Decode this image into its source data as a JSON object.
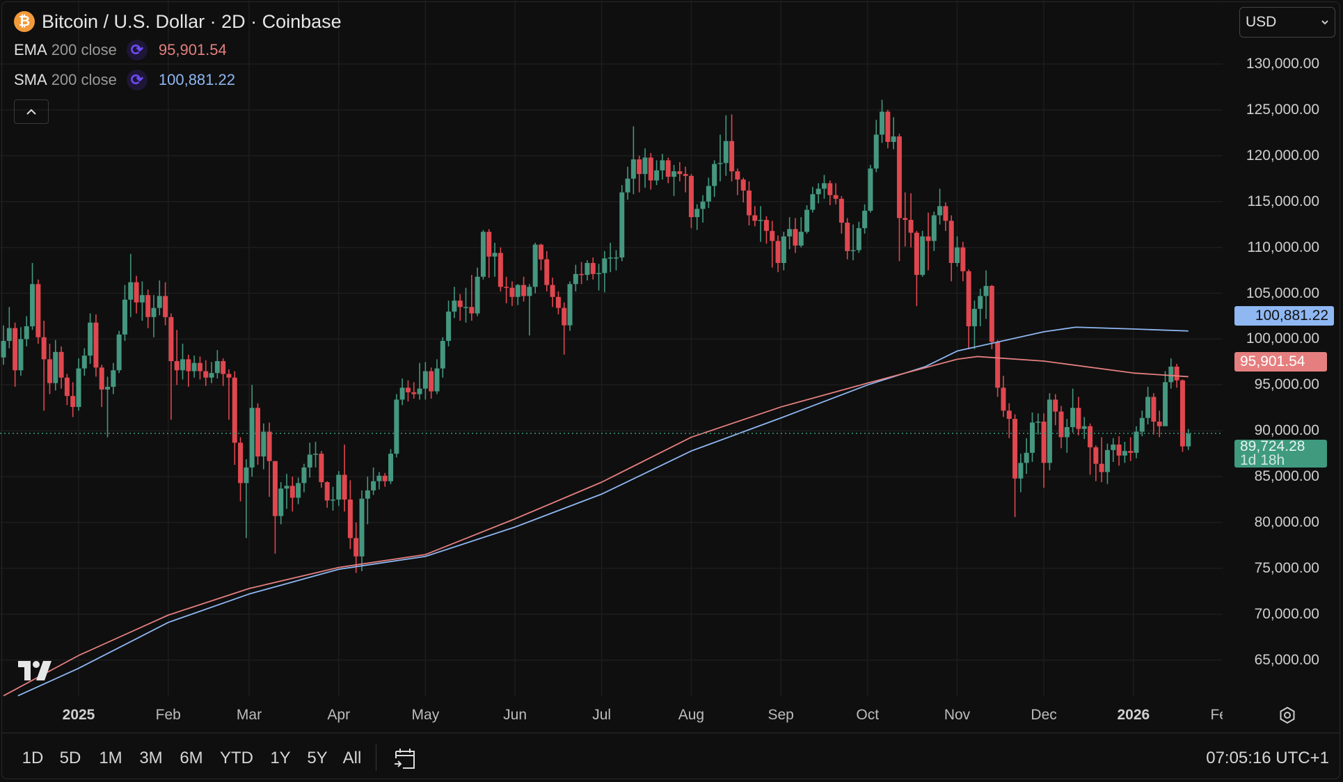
{
  "header": {
    "title": "Bitcoin / U.S. Dollar · 2D · Coinbase",
    "symbol_icon": "bitcoin-icon",
    "indicators": [
      {
        "name": "EMA",
        "params": "200 close",
        "value": "95,901.54",
        "color": "#e57f7f",
        "icon": "sync-icon"
      },
      {
        "name": "SMA",
        "params": "200 close",
        "value": "100,881.22",
        "color": "#8fb8f3",
        "icon": "sync-icon"
      }
    ],
    "collapse_icon": "chevron-up-icon"
  },
  "currency": {
    "selected": "USD"
  },
  "price_labels": {
    "sma": "100,881.22",
    "ema": "95,901.54",
    "last": "89,724.28",
    "countdown": "1d 18h",
    "last_color": "#3f9a7e"
  },
  "toolbar": {
    "ranges": [
      "1D",
      "5D",
      "1M",
      "3M",
      "6M",
      "YTD",
      "1Y",
      "5Y",
      "All"
    ],
    "date_range_icon": "calendar-goto-icon",
    "clock": "07:05:16 UTC+1",
    "settings_icon": "gear-icon"
  },
  "chart_data": {
    "type": "candlestick",
    "interval": "2D",
    "first_candle_date": "2024-12-06",
    "first_open": 98000,
    "colors": {
      "up": "#45977f",
      "down": "#e0474f",
      "ema": "#e57f7f",
      "sma": "#8fb8f3"
    },
    "grid": true,
    "y_ticks": [
      65000,
      70000,
      75000,
      80000,
      85000,
      90000,
      95000,
      100000,
      105000,
      110000,
      115000,
      120000,
      125000,
      130000
    ],
    "y_tick_labels": [
      "65,000.00",
      "70,000.00",
      "75,000.00",
      "80,000.00",
      "85,000.00",
      "90,000.00",
      "95,000.00",
      "100,000.00",
      "105,000.00",
      "110,000.00",
      "115,000.00",
      "120,000.00",
      "125,000.00",
      "130,000.00"
    ],
    "x_ticks": [
      {
        "date": "2025-01-01",
        "label": "2025",
        "bold": true
      },
      {
        "date": "2025-02-01",
        "label": "Feb"
      },
      {
        "date": "2025-03-01",
        "label": "Mar"
      },
      {
        "date": "2025-04-01",
        "label": "Apr"
      },
      {
        "date": "2025-05-01",
        "label": "May"
      },
      {
        "date": "2025-06-01",
        "label": "Jun"
      },
      {
        "date": "2025-07-01",
        "label": "Jul"
      },
      {
        "date": "2025-08-01",
        "label": "Aug"
      },
      {
        "date": "2025-09-01",
        "label": "Sep"
      },
      {
        "date": "2025-10-01",
        "label": "Oct"
      },
      {
        "date": "2025-11-01",
        "label": "Nov"
      },
      {
        "date": "2025-12-01",
        "label": "Dec"
      },
      {
        "date": "2026-01-01",
        "label": "2026",
        "bold": true
      },
      {
        "date": "2026-02-01",
        "label": "Feb"
      }
    ],
    "last_price": 89724.28,
    "candles_hlc": [
      [
        101500,
        97200,
        99800
      ],
      [
        103500,
        99000,
        101200
      ],
      [
        101800,
        94800,
        96600
      ],
      [
        101300,
        96000,
        100000
      ],
      [
        102500,
        99200,
        101400
      ],
      [
        108300,
        101000,
        106000
      ],
      [
        106500,
        99500,
        100200
      ],
      [
        102000,
        92200,
        97800
      ],
      [
        99500,
        94000,
        95200
      ],
      [
        99900,
        94400,
        98600
      ],
      [
        99200,
        94600,
        95800
      ],
      [
        96200,
        92800,
        93800
      ],
      [
        95300,
        91500,
        92600
      ],
      [
        97900,
        92200,
        96800
      ],
      [
        99000,
        96000,
        98200
      ],
      [
        102800,
        97300,
        101800
      ],
      [
        102700,
        95900,
        96900
      ],
      [
        97200,
        92600,
        94500
      ],
      [
        95900,
        89300,
        94800
      ],
      [
        97400,
        94000,
        96600
      ],
      [
        100900,
        96300,
        100500
      ],
      [
        105900,
        99800,
        104300
      ],
      [
        109300,
        102400,
        106200
      ],
      [
        106900,
        102800,
        104000
      ],
      [
        106300,
        102000,
        104800
      ],
      [
        105400,
        101200,
        102400
      ],
      [
        104800,
        100200,
        103400
      ],
      [
        106400,
        102600,
        104700
      ],
      [
        106200,
        101500,
        102400
      ],
      [
        102800,
        91200,
        97600
      ],
      [
        101000,
        95000,
        96600
      ],
      [
        99500,
        95600,
        97800
      ],
      [
        98300,
        94800,
        96500
      ],
      [
        98200,
        95800,
        97400
      ],
      [
        98100,
        95600,
        96500
      ],
      [
        97700,
        94900,
        95800
      ],
      [
        97500,
        95200,
        96300
      ],
      [
        98800,
        95700,
        97600
      ],
      [
        97900,
        94900,
        96200
      ],
      [
        96700,
        91200,
        95800
      ],
      [
        96500,
        86300,
        88700
      ],
      [
        89300,
        82300,
        84300
      ],
      [
        86900,
        78300,
        86000
      ],
      [
        95000,
        85000,
        92500
      ],
      [
        93000,
        86300,
        87200
      ],
      [
        90800,
        85800,
        89900
      ],
      [
        90900,
        82800,
        86700
      ],
      [
        86400,
        76600,
        80700
      ],
      [
        84400,
        79800,
        83700
      ],
      [
        85300,
        81500,
        84000
      ],
      [
        85000,
        81200,
        82700
      ],
      [
        84900,
        82000,
        84300
      ],
      [
        86400,
        83300,
        86000
      ],
      [
        88700,
        84900,
        87400
      ],
      [
        88800,
        86000,
        87500
      ],
      [
        87800,
        83800,
        84400
      ],
      [
        84500,
        81600,
        82400
      ],
      [
        83900,
        81300,
        82500
      ],
      [
        85600,
        81800,
        85200
      ],
      [
        88500,
        81200,
        82500
      ],
      [
        84600,
        77100,
        78300
      ],
      [
        80000,
        74500,
        76300
      ],
      [
        83500,
        74700,
        82600
      ],
      [
        85000,
        79800,
        83500
      ],
      [
        86000,
        83000,
        84500
      ],
      [
        85500,
        83600,
        85100
      ],
      [
        85400,
        83900,
        84500
      ],
      [
        88000,
        84200,
        87500
      ],
      [
        94000,
        87100,
        93400
      ],
      [
        95700,
        92800,
        94700
      ],
      [
        95500,
        93200,
        94200
      ],
      [
        95300,
        93500,
        94000
      ],
      [
        97400,
        93400,
        94600
      ],
      [
        97500,
        93400,
        96500
      ],
      [
        96900,
        93500,
        94300
      ],
      [
        97800,
        94000,
        96800
      ],
      [
        100200,
        95800,
        99800
      ],
      [
        104200,
        99200,
        103000
      ],
      [
        105700,
        102300,
        104200
      ],
      [
        104900,
        102000,
        103500
      ],
      [
        105600,
        101800,
        103500
      ],
      [
        107000,
        102000,
        102800
      ],
      [
        107800,
        102500,
        106800
      ],
      [
        111900,
        106500,
        111700
      ],
      [
        112000,
        106700,
        109000
      ],
      [
        110500,
        106800,
        109400
      ],
      [
        110000,
        105200,
        105700
      ],
      [
        106800,
        103900,
        105600
      ],
      [
        106300,
        103600,
        104600
      ],
      [
        106000,
        103700,
        105900
      ],
      [
        106800,
        104100,
        104700
      ],
      [
        106000,
        100400,
        105700
      ],
      [
        110500,
        105000,
        110300
      ],
      [
        110400,
        107500,
        108700
      ],
      [
        109600,
        105200,
        105900
      ],
      [
        106700,
        103500,
        104600
      ],
      [
        105200,
        102700,
        103400
      ],
      [
        104000,
        98300,
        101500
      ],
      [
        106300,
        100900,
        106000
      ],
      [
        108100,
        105200,
        107100
      ],
      [
        108400,
        106000,
        107000
      ],
      [
        108600,
        106400,
        108300
      ],
      [
        108900,
        106500,
        107100
      ],
      [
        108200,
        105300,
        107200
      ],
      [
        109600,
        105100,
        108800
      ],
      [
        110500,
        107300,
        108900
      ],
      [
        109700,
        107500,
        108900
      ],
      [
        116800,
        108500,
        116000
      ],
      [
        118800,
        115200,
        117500
      ],
      [
        123200,
        115800,
        119600
      ],
      [
        120000,
        116000,
        118000
      ],
      [
        120800,
        116500,
        119800
      ],
      [
        120300,
        116300,
        117300
      ],
      [
        119500,
        116800,
        118400
      ],
      [
        120200,
        117400,
        119500
      ],
      [
        119800,
        117000,
        117700
      ],
      [
        119000,
        115600,
        118300
      ],
      [
        119300,
        117200,
        118000
      ],
      [
        118800,
        116000,
        117800
      ],
      [
        118000,
        112100,
        113300
      ],
      [
        114700,
        111900,
        114200
      ],
      [
        115700,
        112700,
        115000
      ],
      [
        117600,
        114300,
        116700
      ],
      [
        119500,
        115500,
        119100
      ],
      [
        122300,
        117200,
        119200
      ],
      [
        124400,
        117800,
        121600
      ],
      [
        124500,
        117200,
        118300
      ],
      [
        118600,
        115700,
        117400
      ],
      [
        117600,
        114900,
        116200
      ],
      [
        117200,
        112400,
        113500
      ],
      [
        114500,
        112300,
        112900
      ],
      [
        114500,
        110600,
        113000
      ],
      [
        113400,
        110400,
        111800
      ],
      [
        112900,
        107800,
        110700
      ],
      [
        111300,
        107300,
        108300
      ],
      [
        111700,
        107500,
        111200
      ],
      [
        113300,
        109800,
        112000
      ],
      [
        113200,
        109400,
        110200
      ],
      [
        113300,
        110000,
        111700
      ],
      [
        114600,
        111500,
        114100
      ],
      [
        116600,
        113800,
        115800
      ],
      [
        117000,
        114800,
        116400
      ],
      [
        117900,
        115300,
        117000
      ],
      [
        117300,
        114600,
        115700
      ],
      [
        117000,
        114700,
        115300
      ],
      [
        115600,
        111500,
        112700
      ],
      [
        113200,
        108700,
        109600
      ],
      [
        112500,
        108600,
        109700
      ],
      [
        112800,
        109400,
        112100
      ],
      [
        114700,
        111500,
        114000
      ],
      [
        119000,
        113800,
        118600
      ],
      [
        123900,
        118200,
        122300
      ],
      [
        126100,
        121400,
        124800
      ],
      [
        125000,
        120800,
        121500
      ],
      [
        124200,
        120700,
        122100
      ],
      [
        122400,
        108500,
        113200
      ],
      [
        116000,
        110100,
        113000
      ],
      [
        115900,
        110000,
        111600
      ],
      [
        111800,
        103600,
        107000
      ],
      [
        111800,
        106800,
        111200
      ],
      [
        113800,
        107500,
        110700
      ],
      [
        113900,
        109600,
        113500
      ],
      [
        116400,
        112500,
        114500
      ],
      [
        114900,
        111800,
        112900
      ],
      [
        113500,
        106300,
        108300
      ],
      [
        111200,
        107900,
        110000
      ],
      [
        110600,
        106300,
        107400
      ],
      [
        107600,
        98900,
        101400
      ],
      [
        104200,
        98900,
        103300
      ],
      [
        105500,
        101400,
        104700
      ],
      [
        107500,
        102200,
        105800
      ],
      [
        105900,
        98900,
        99700
      ],
      [
        99900,
        93700,
        94700
      ],
      [
        96000,
        91500,
        92200
      ],
      [
        93000,
        89200,
        91300
      ],
      [
        91800,
        80600,
        84800
      ],
      [
        87500,
        83300,
        86500
      ],
      [
        89200,
        85300,
        87600
      ],
      [
        92000,
        86600,
        90900
      ],
      [
        91900,
        89600,
        91000
      ],
      [
        91900,
        83800,
        86500
      ],
      [
        94100,
        85700,
        93400
      ],
      [
        94000,
        90600,
        92100
      ],
      [
        92700,
        88100,
        89300
      ],
      [
        91300,
        87600,
        90400
      ],
      [
        94600,
        89800,
        92500
      ],
      [
        93700,
        89500,
        90200
      ],
      [
        91500,
        89100,
        90500
      ],
      [
        90800,
        85200,
        88200
      ],
      [
        88400,
        84500,
        86400
      ],
      [
        89300,
        84400,
        85500
      ],
      [
        88600,
        84200,
        87900
      ],
      [
        89200,
        86600,
        88500
      ],
      [
        89400,
        86200,
        87300
      ],
      [
        88800,
        86500,
        87800
      ],
      [
        89300,
        86700,
        87600
      ],
      [
        90500,
        87000,
        89900
      ],
      [
        92200,
        89400,
        91400
      ],
      [
        94800,
        90700,
        93700
      ],
      [
        94100,
        89600,
        91000
      ],
      [
        92200,
        89300,
        90500
      ],
      [
        96500,
        90600,
        95300
      ],
      [
        97900,
        94600,
        97000
      ],
      [
        97300,
        94700,
        95500
      ],
      [
        95600,
        87700,
        88300
      ],
      [
        90200,
        87900,
        89700
      ]
    ],
    "ema_200": [
      [
        "2024-12-06",
        61100
      ],
      [
        "2025-01-01",
        65500
      ],
      [
        "2025-02-01",
        69900
      ],
      [
        "2025-03-01",
        72800
      ],
      [
        "2025-04-01",
        75100
      ],
      [
        "2025-05-01",
        76500
      ],
      [
        "2025-06-01",
        80400
      ],
      [
        "2025-07-01",
        84400
      ],
      [
        "2025-08-01",
        89300
      ],
      [
        "2025-09-01",
        92600
      ],
      [
        "2025-10-01",
        95200
      ],
      [
        "2025-11-01",
        97800
      ],
      [
        "2025-11-08",
        98100
      ],
      [
        "2025-12-01",
        97600
      ],
      [
        "2026-01-01",
        96300
      ],
      [
        "2026-01-20",
        95901.54
      ]
    ],
    "sma_200": [
      [
        "2024-12-11",
        61100
      ],
      [
        "2025-01-01",
        64100
      ],
      [
        "2025-02-01",
        69100
      ],
      [
        "2025-03-01",
        72200
      ],
      [
        "2025-04-01",
        74900
      ],
      [
        "2025-05-01",
        76300
      ],
      [
        "2025-06-01",
        79500
      ],
      [
        "2025-07-01",
        83100
      ],
      [
        "2025-08-01",
        87800
      ],
      [
        "2025-09-01",
        91400
      ],
      [
        "2025-10-01",
        95000
      ],
      [
        "2025-10-21",
        97000
      ],
      [
        "2025-11-01",
        98700
      ],
      [
        "2025-12-01",
        100800
      ],
      [
        "2025-12-12",
        101300
      ],
      [
        "2026-01-01",
        101100
      ],
      [
        "2026-01-20",
        100881.22
      ]
    ]
  }
}
